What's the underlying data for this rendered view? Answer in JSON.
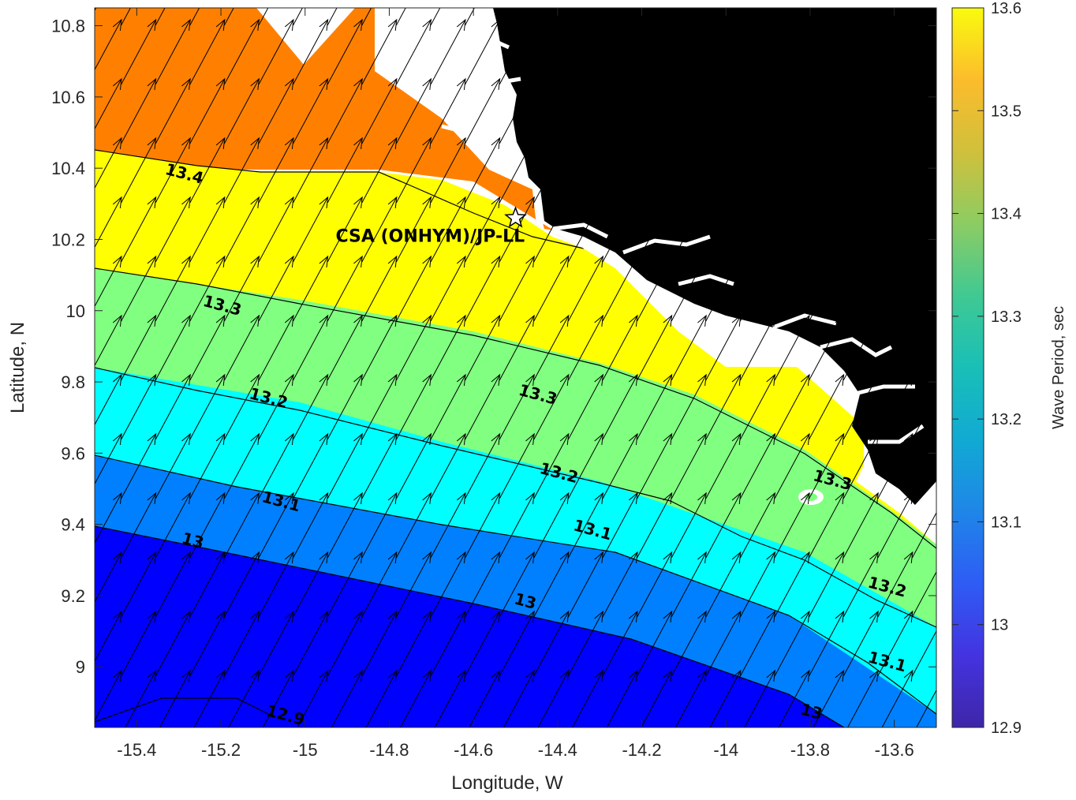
{
  "map": {
    "xlabel": "Longitude, W",
    "ylabel": "Latitude, N",
    "xlim": [
      -15.5,
      -13.5
    ],
    "ylim": [
      8.83,
      10.85
    ],
    "xticks": [
      -15.4,
      -15.2,
      -15,
      -14.8,
      -14.6,
      -14.4,
      -14.2,
      -14,
      -13.8,
      -13.6
    ],
    "xtick_labels": [
      "-15.4",
      "-15.2",
      "-15",
      "-14.8",
      "-14.6",
      "-14.4",
      "-14.2",
      "-14",
      "-13.8",
      "-13.6"
    ],
    "yticks": [
      9,
      9.2,
      9.4,
      9.6,
      9.8,
      10,
      10.2,
      10.4,
      10.6,
      10.8
    ],
    "ytick_labels": [
      "9",
      "9.2",
      "9.4",
      "9.6",
      "9.8",
      "10",
      "10.2",
      "10.4",
      "10.6",
      "10.8"
    ],
    "land_color": "#000000",
    "site": {
      "label": "CSA (ONHYM)/JP-LL",
      "lon": -14.5,
      "lat": 10.26
    },
    "contour_labels": [
      {
        "text": "13.4",
        "lon": -15.29,
        "lat": 10.37
      },
      {
        "text": "13.3",
        "lon": -15.2,
        "lat": 10.0
      },
      {
        "text": "13.3",
        "lon": -14.45,
        "lat": 9.75
      },
      {
        "text": "13.3",
        "lon": -13.75,
        "lat": 9.51
      },
      {
        "text": "13.2",
        "lon": -15.09,
        "lat": 9.74
      },
      {
        "text": "13.2",
        "lon": -14.4,
        "lat": 9.53
      },
      {
        "text": "13.2",
        "lon": -13.62,
        "lat": 9.21
      },
      {
        "text": "13.1",
        "lon": -15.06,
        "lat": 9.45
      },
      {
        "text": "13.1",
        "lon": -14.32,
        "lat": 9.37
      },
      {
        "text": "13.1",
        "lon": -13.62,
        "lat": 9.0
      },
      {
        "text": "13",
        "lon": -15.27,
        "lat": 9.34
      },
      {
        "text": "13",
        "lon": -14.48,
        "lat": 9.17
      },
      {
        "text": "13",
        "lon": -13.8,
        "lat": 8.86
      },
      {
        "text": "12.9",
        "lon": -15.05,
        "lat": 8.85
      }
    ]
  },
  "colorbar": {
    "label": "Wave Period, sec",
    "ticks": [
      12.9,
      13,
      13.1,
      13.2,
      13.3,
      13.4,
      13.5,
      13.6
    ],
    "tick_labels": [
      "12.9",
      "13",
      "13.1",
      "13.2",
      "13.3",
      "13.4",
      "13.5",
      "13.6"
    ],
    "range": [
      12.9,
      13.6
    ],
    "colormap": "parula"
  },
  "bands": [
    {
      "range": [
        12.9,
        13.0
      ],
      "color": "#0000ff"
    },
    {
      "range": [
        13.0,
        13.1
      ],
      "color": "#0080ff"
    },
    {
      "range": [
        13.1,
        13.2
      ],
      "color": "#00ffff"
    },
    {
      "range": [
        13.2,
        13.3
      ],
      "color": "#80ff80"
    },
    {
      "range": [
        13.3,
        13.4
      ],
      "color": "#ffff00"
    },
    {
      "range": [
        13.4,
        13.5
      ],
      "color": "#ff8000"
    }
  ],
  "vectors": {
    "direction": "toward north-northeast"
  }
}
